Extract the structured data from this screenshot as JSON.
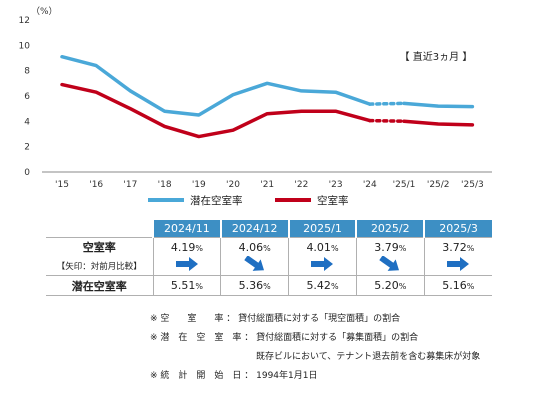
{
  "chart_data": {
    "type": "line",
    "unit_label": "（%）",
    "categories": [
      "'15",
      "'16",
      "'17",
      "'18",
      "'19",
      "'20",
      "'21",
      "'22",
      "'23",
      "'24",
      "'25/1",
      "'25/2",
      "'25/3"
    ],
    "ylim": [
      0,
      12
    ],
    "yticks": [
      "0",
      "2",
      "4",
      "6",
      "8",
      "10",
      "12"
    ],
    "grid": false,
    "series": [
      {
        "name": "潜在空室率",
        "color": "#4aa8d8",
        "values": [
          9.1,
          8.4,
          6.4,
          4.8,
          4.5,
          6.1,
          7.0,
          6.4,
          6.3,
          5.36,
          5.42,
          5.2,
          5.16
        ]
      },
      {
        "name": "空室率",
        "color": "#c0001a",
        "values": [
          6.9,
          6.3,
          5.0,
          3.6,
          2.8,
          3.3,
          4.6,
          4.8,
          4.8,
          4.06,
          4.01,
          3.79,
          3.72
        ]
      }
    ],
    "annotation": "【 直近3ヵ月 】",
    "legend_position": "bottom"
  },
  "table": {
    "months": [
      "2024/11",
      "2024/12",
      "2025/1",
      "2025/2",
      "2025/3"
    ],
    "vacancy_label": "空室率",
    "vacancy": [
      "4.19",
      "4.06",
      "4.01",
      "3.79",
      "3.72"
    ],
    "arrow_label": "【矢印：対前月比較】",
    "arrows": [
      "right",
      "down-right",
      "right",
      "down-right",
      "right"
    ],
    "latent_label": "潜在空室率",
    "latent": [
      "5.51",
      "5.36",
      "5.42",
      "5.20",
      "5.16"
    ],
    "pct": "%",
    "arrow_color": "#1f6fc2"
  },
  "notes": [
    "※ 空　　室　　率 ： 貸付総面積に対する「現空面積」の割合",
    "※ 潜　在　空　室　率 ： 貸付総面積に対する「募集面積」の割合",
    "既存ビルにおいて、テナント退去前を含む募集床が対象",
    "※ 統　計　開　始　日 ： 1994年1月1日"
  ]
}
